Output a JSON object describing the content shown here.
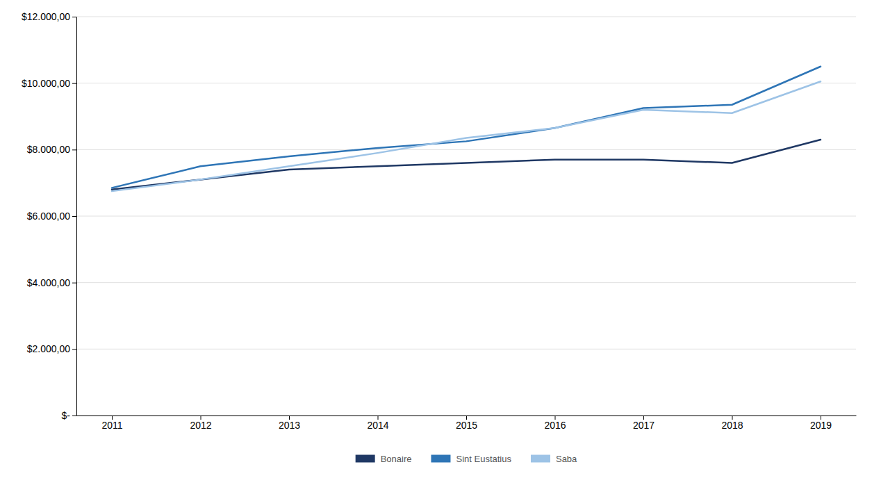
{
  "chart_data": {
    "type": "line",
    "x": [
      2011,
      2012,
      2013,
      2014,
      2015,
      2016,
      2017,
      2018,
      2019
    ],
    "series": [
      {
        "name": "Bonaire",
        "color": "#1F3864",
        "values": [
          6800,
          7100,
          7400,
          7500,
          7600,
          7700,
          7700,
          7600,
          8300
        ]
      },
      {
        "name": "Sint Eustatius",
        "color": "#2E75B6",
        "values": [
          6850,
          7500,
          7800,
          8050,
          8250,
          8650,
          9250,
          9350,
          10500
        ]
      },
      {
        "name": "Saba",
        "color": "#9DC3E6",
        "values": [
          6750,
          7100,
          7500,
          7900,
          8350,
          8650,
          9200,
          9100,
          10050
        ]
      }
    ],
    "xlim": [
      2010.6,
      2019.4
    ],
    "xticks": [
      2011,
      2012,
      2013,
      2014,
      2015,
      2016,
      2017,
      2018,
      2019
    ],
    "ylim": [
      0,
      12000
    ],
    "yticks": [
      {
        "value": 0,
        "label": "$-"
      },
      {
        "value": 2000,
        "label": "$2.000,00"
      },
      {
        "value": 4000,
        "label": "$4.000,00"
      },
      {
        "value": 6000,
        "label": "$6.000,00"
      },
      {
        "value": 8000,
        "label": "$8.000,00"
      },
      {
        "value": 10000,
        "label": "$10.000,00"
      },
      {
        "value": 12000,
        "label": "$12.000,00"
      }
    ],
    "grid": true,
    "legend": "bottom"
  }
}
